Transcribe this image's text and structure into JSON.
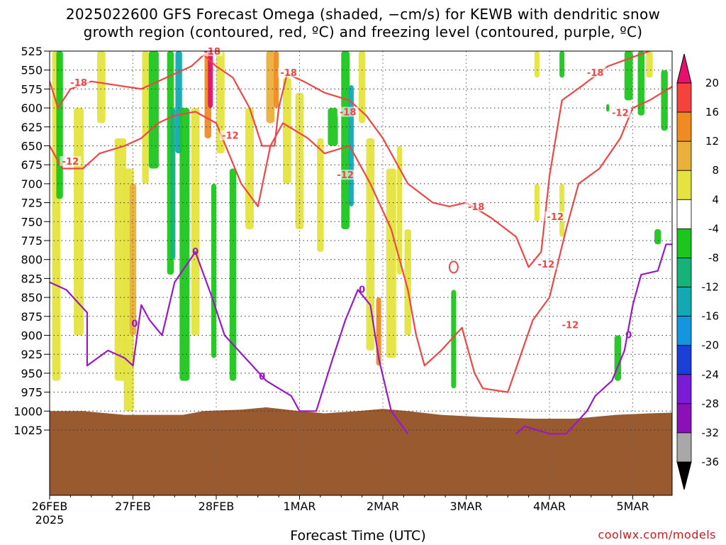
{
  "title": {
    "line1": "2025022600 GFS Forecast Omega (shaded, −cm/s) for KEWB with dendritic snow",
    "line2": "growth region (contoured, red, ºC) and freezing level (contoured, purple, ºC)"
  },
  "xlabel": "Forecast Time (UTC)",
  "credit": "coolwx.com/models",
  "chart_data": {
    "type": "heatmap",
    "title": "2025022600 GFS Forecast Omega (shaded, −cm/s) for KEWB with dendritic snow growth region (contoured, red, ºC) and freezing level (contoured, purple, ºC)",
    "xlabel": "Forecast Time (UTC)",
    "ylabel": "",
    "x_tick_labels": [
      "26FEB",
      "27FEB",
      "28FEB",
      "1MAR",
      "2MAR",
      "3MAR",
      "4MAR",
      "5MAR"
    ],
    "x_first_sublabel": "2025",
    "xlim_days": [
      0,
      7.5
    ],
    "y_tick_labels": [
      525,
      550,
      575,
      600,
      625,
      650,
      675,
      700,
      725,
      750,
      775,
      800,
      825,
      850,
      875,
      900,
      925,
      950,
      975,
      1000,
      1025
    ],
    "ylim": [
      1025,
      525
    ],
    "y_scale": "pressure (hPa), inverted",
    "grid": true,
    "colorbar": {
      "labels": [
        20,
        16,
        12,
        8,
        4,
        -4,
        -8,
        -12,
        -16,
        -20,
        -24,
        -28,
        -32,
        -36
      ],
      "colors": [
        "#e80f6e",
        "#f5433b",
        "#f08b22",
        "#e9b03c",
        "#e4e33f",
        "#ffffff",
        "#1cc61c",
        "#17b27a",
        "#12a9b3",
        "#1395e0",
        "#1a3fd6",
        "#7a1bd5",
        "#8b10b8",
        "#a8a8a8",
        "#000000"
      ]
    },
    "contours": {
      "dgz_red": {
        "levels": [
          -18,
          -12
        ],
        "color": "#f04545",
        "labels_shown": [
          "-18",
          "-18",
          "-18",
          "-18",
          "-18",
          "-18",
          "-12",
          "-12",
          "-12",
          "-12",
          "-12",
          "-12",
          "-12"
        ]
      },
      "freezing_purple": {
        "levels": [
          0
        ],
        "color": "#9a18c8",
        "labels_shown": [
          "0",
          "0",
          "0",
          "0",
          "0"
        ]
      }
    },
    "terrain_color": "#9a5a2f"
  }
}
